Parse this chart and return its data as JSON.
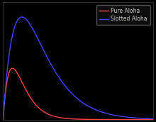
{
  "background_color": "#000000",
  "axes_bg_color": "#000000",
  "pure_aloha_color": "#ff4444",
  "slotted_aloha_color": "#4444ff",
  "legend_labels": [
    "Pure Aloha",
    "Slotted Aloha"
  ],
  "legend_edge_color": "#666666",
  "legend_face_color": "#111111",
  "legend_text_color": "#cccccc",
  "tick_color": "#888888",
  "spine_color": "#444444",
  "xlim": [
    0,
    8
  ],
  "ylim": [
    0,
    0.42
  ],
  "g_max": 8.0,
  "num_points": 2000,
  "line_width": 1.0,
  "figsize": [
    2.2,
    1.72
  ],
  "dpi": 100
}
